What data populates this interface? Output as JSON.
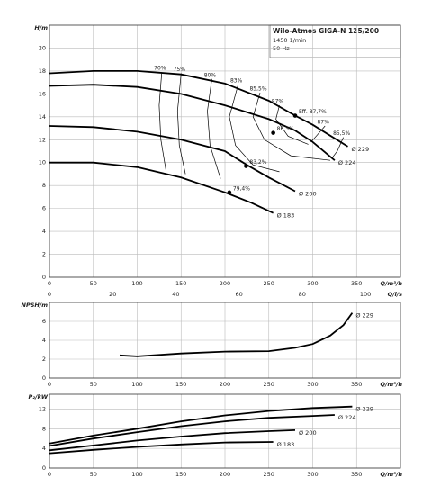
{
  "chart_data": [
    {
      "type": "line",
      "title": "Wilo-Atmos GIGA-N 125/200",
      "subtitle": [
        "1450 1/min",
        "50 Hz"
      ],
      "ylabel": "H/m",
      "xlabel": "Q/m³/h",
      "x2label": "Q/l/s",
      "xlim": [
        0,
        400
      ],
      "xticks": [
        0,
        50,
        100,
        150,
        200,
        250,
        300,
        350
      ],
      "x2lim": [
        0,
        111.1
      ],
      "x2ticks": [
        0,
        20,
        40,
        60,
        80,
        100
      ],
      "ylim": [
        0,
        22
      ],
      "yticks": [
        0,
        2,
        4,
        6,
        8,
        10,
        12,
        14,
        16,
        18,
        20
      ],
      "grid": true,
      "color": "#000000",
      "series": [
        {
          "name": "Ø 229",
          "x": [
            0,
            50,
            100,
            150,
            200,
            250,
            280,
            300,
            340
          ],
          "values": [
            17.8,
            18.0,
            18.0,
            17.7,
            16.9,
            15.4,
            14.1,
            13.3,
            11.4
          ]
        },
        {
          "name": "Ø 224",
          "x": [
            0,
            50,
            100,
            150,
            200,
            250,
            280,
            300,
            325
          ],
          "values": [
            16.7,
            16.8,
            16.6,
            16.0,
            15.0,
            13.8,
            12.8,
            11.8,
            10.2
          ]
        },
        {
          "name": "Ø 200",
          "x": [
            0,
            50,
            100,
            150,
            200,
            225,
            250,
            280
          ],
          "values": [
            13.2,
            13.1,
            12.7,
            12.0,
            11.0,
            9.8,
            8.7,
            7.5
          ]
        },
        {
          "name": "Ø 183",
          "x": [
            0,
            50,
            100,
            150,
            200,
            230,
            255
          ],
          "values": [
            10.0,
            10.0,
            9.6,
            8.7,
            7.4,
            6.5,
            5.6
          ]
        }
      ],
      "efficiency_lines": [
        {
          "name": "70%",
          "x": [
            128,
            125,
            127,
            133
          ],
          "values": [
            17.9,
            15,
            12,
            9.2
          ]
        },
        {
          "name": "75%",
          "x": [
            150,
            146,
            148,
            155
          ],
          "values": [
            17.8,
            14.5,
            11.5,
            9.0
          ]
        },
        {
          "name": "80%",
          "x": [
            185,
            180,
            183,
            195
          ],
          "values": [
            17.3,
            14.5,
            11.5,
            8.6
          ]
        },
        {
          "name": "83%",
          "x": [
            215,
            205,
            212,
            232,
            262
          ],
          "values": [
            16.8,
            14,
            11.5,
            9.8,
            9.2
          ]
        },
        {
          "name": "85,5%",
          "x": [
            240,
            232,
            245,
            275,
            320
          ],
          "values": [
            16.1,
            14,
            12,
            10.6,
            10.2
          ]
        },
        {
          "name": "87%",
          "x": [
            262,
            258,
            272,
            295
          ],
          "values": [
            15.0,
            13.8,
            12.3,
            11.6
          ]
        },
        {
          "name": "87%",
          "x": [
            314,
            305,
            298
          ],
          "values": [
            13.2,
            12.4,
            11.8
          ]
        },
        {
          "name": "85,5%",
          "x": [
            335,
            328,
            322
          ],
          "values": [
            12.2,
            11.0,
            10.4
          ]
        }
      ],
      "points": [
        {
          "label": "Eff. 87,7%",
          "x": 280,
          "y": 14.1
        },
        {
          "label": "86,3%",
          "x": 255,
          "y": 12.6
        },
        {
          "label": "83,2%",
          "x": 224,
          "y": 9.7
        },
        {
          "label": "79,4%",
          "x": 205,
          "y": 7.4
        }
      ]
    },
    {
      "type": "line",
      "ylabel": "NPSH/m",
      "xlabel": "Q/m³/h",
      "xlim": [
        0,
        400
      ],
      "xticks": [
        0,
        50,
        100,
        150,
        200,
        250,
        300,
        350
      ],
      "ylim": [
        0,
        8
      ],
      "yticks": [
        0,
        2,
        4,
        6
      ],
      "grid": true,
      "color": "#000000",
      "series": [
        {
          "name": "Ø 229",
          "x": [
            80,
            100,
            150,
            200,
            250,
            280,
            300,
            320,
            335,
            345
          ],
          "values": [
            2.4,
            2.3,
            2.6,
            2.8,
            2.85,
            3.2,
            3.6,
            4.5,
            5.6,
            6.9
          ]
        }
      ]
    },
    {
      "type": "line",
      "ylabel": "P₂/kW",
      "xlabel": "Q/m³/h",
      "xlim": [
        0,
        400
      ],
      "xticks": [
        0,
        50,
        100,
        150,
        200,
        250,
        300,
        350
      ],
      "ylim": [
        0,
        15
      ],
      "yticks": [
        0,
        4,
        8,
        12
      ],
      "grid": true,
      "color": "#000000",
      "series": [
        {
          "name": "Ø 229",
          "x": [
            0,
            50,
            100,
            150,
            200,
            250,
            300,
            345
          ],
          "values": [
            5.0,
            6.6,
            8.0,
            9.5,
            10.7,
            11.6,
            12.2,
            12.5
          ]
        },
        {
          "name": "Ø 224",
          "x": [
            0,
            50,
            100,
            150,
            200,
            250,
            300,
            325
          ],
          "values": [
            4.5,
            6.0,
            7.3,
            8.5,
            9.5,
            10.2,
            10.6,
            10.8
          ]
        },
        {
          "name": "Ø 200",
          "x": [
            0,
            50,
            100,
            150,
            200,
            250,
            280
          ],
          "values": [
            3.6,
            4.6,
            5.6,
            6.4,
            7.1,
            7.5,
            7.7
          ]
        },
        {
          "name": "Ø 183",
          "x": [
            0,
            50,
            100,
            150,
            200,
            255
          ],
          "values": [
            3.0,
            3.7,
            4.3,
            4.8,
            5.2,
            5.3
          ]
        }
      ]
    }
  ]
}
